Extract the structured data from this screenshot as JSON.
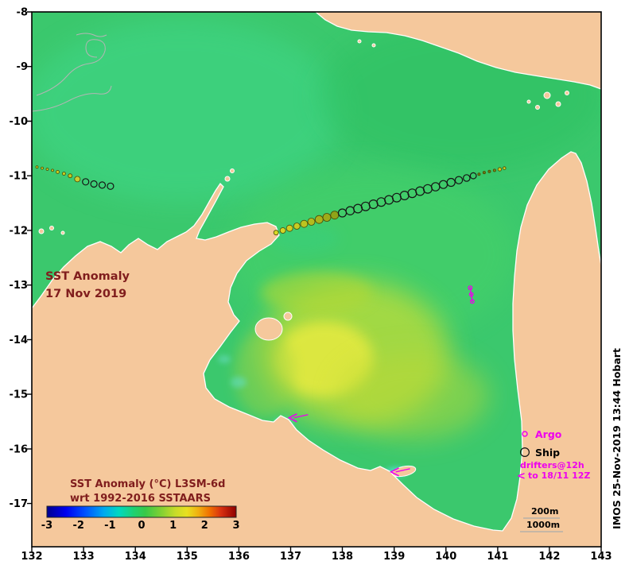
{
  "page": {
    "bg": "#ffffff"
  },
  "annotation": {
    "line1": "SST Anomaly",
    "line2": "17 Nov 2019"
  },
  "colorbar": {
    "label_line1": "SST Anomaly (°C) L3SM-6d",
    "label_line2": "wrt 1992-2016 SSTAARS",
    "tick_labels": [
      "-3",
      "-2",
      "-1",
      "0",
      "1",
      "2",
      "3"
    ],
    "gradient_colors": [
      "#00008f",
      "#0000f0",
      "#0050ff",
      "#00a8f0",
      "#00d8c0",
      "#20d070",
      "#38c848",
      "#7ed034",
      "#c8dc28",
      "#e8e020",
      "#f0b010",
      "#f07000",
      "#d83010",
      "#8f0000"
    ]
  },
  "legend": {
    "argo_label": "Argo",
    "ship_label": "Ship",
    "drifters_line1": "drifters@12h",
    "drifters_line2": "to 18/11 12Z",
    "arrow_glyph": "<"
  },
  "depth_legend": {
    "label_200": "200m",
    "label_1000": "1000m"
  },
  "credit": "IMOS 25-Nov-2019 13:44 Hobart",
  "axes": {
    "x_tick_labels": [
      "132",
      "133",
      "134",
      "135",
      "136",
      "137",
      "138",
      "139",
      "140",
      "141",
      "142",
      "143"
    ],
    "y_tick_labels": [
      "-8",
      "-9",
      "-10",
      "-11",
      "-12",
      "-13",
      "-14",
      "-15",
      "-16",
      "-17"
    ],
    "lon_range": [
      132,
      143
    ],
    "lat_range": [
      -17.79,
      -8
    ]
  },
  "colors": {
    "land": "#f5c89c",
    "ocean": "#3bc86d",
    "annotation_text": "#801d1d",
    "magenta": "#ee00ee"
  },
  "markers": {
    "argo_color": "#ee00ee",
    "ship_track": [
      [
        132.1,
        -10.84,
        1.5,
        "#d6d61e"
      ],
      [
        132.2,
        -10.86,
        1.5,
        "#d6d61e"
      ],
      [
        132.3,
        -10.88,
        1.5,
        "#cfd41e"
      ],
      [
        132.4,
        -10.9,
        1.5,
        "#cfd41e"
      ],
      [
        132.5,
        -10.93,
        2,
        "#c9d01e"
      ],
      [
        132.62,
        -10.96,
        2,
        "#c9d01e"
      ],
      [
        132.74,
        -11.0,
        2.5,
        "#c2cc1e"
      ],
      [
        132.88,
        -11.06,
        3.5,
        "#c9cf30"
      ],
      [
        133.04,
        -11.11,
        4,
        "open"
      ],
      [
        133.2,
        -11.15,
        4,
        "open"
      ],
      [
        133.36,
        -11.17,
        4,
        "open"
      ],
      [
        133.52,
        -11.19,
        4,
        "open"
      ],
      [
        136.72,
        -12.04,
        3,
        "#d8da26"
      ],
      [
        136.85,
        -12.0,
        3.5,
        "#d4d626"
      ],
      [
        136.98,
        -11.96,
        4,
        "#cdd024"
      ],
      [
        137.12,
        -11.92,
        4,
        "#c6cc22"
      ],
      [
        137.26,
        -11.88,
        4.5,
        "#bcc420"
      ],
      [
        137.4,
        -11.84,
        4.5,
        "#b2bc1e"
      ],
      [
        137.55,
        -11.8,
        5,
        "#a8b41c"
      ],
      [
        137.7,
        -11.76,
        5,
        "#9cac1a"
      ],
      [
        137.85,
        -11.72,
        5,
        "#90a418"
      ],
      [
        138.0,
        -11.68,
        5,
        "open"
      ],
      [
        138.15,
        -11.64,
        5.2,
        "open"
      ],
      [
        138.3,
        -11.6,
        5.4,
        "open"
      ],
      [
        138.45,
        -11.56,
        5.4,
        "open"
      ],
      [
        138.6,
        -11.52,
        5.4,
        "open"
      ],
      [
        138.75,
        -11.48,
        5.4,
        "open"
      ],
      [
        138.9,
        -11.44,
        5.4,
        "open"
      ],
      [
        139.05,
        -11.4,
        5.4,
        "open"
      ],
      [
        139.2,
        -11.36,
        5.4,
        "open"
      ],
      [
        139.35,
        -11.32,
        5.4,
        "open"
      ],
      [
        139.5,
        -11.28,
        5.4,
        "open"
      ],
      [
        139.65,
        -11.24,
        5.4,
        "open"
      ],
      [
        139.8,
        -11.2,
        5.2,
        "open"
      ],
      [
        139.95,
        -11.16,
        5,
        "open"
      ],
      [
        140.1,
        -11.12,
        5,
        "open"
      ],
      [
        140.25,
        -11.08,
        4.6,
        "open"
      ],
      [
        140.4,
        -11.04,
        4.2,
        "open"
      ],
      [
        140.53,
        -11.0,
        3.8,
        "open"
      ],
      [
        140.64,
        -10.97,
        1.6,
        "#6a7a10"
      ],
      [
        140.74,
        -10.94,
        1.6,
        "#6a7a10"
      ],
      [
        140.84,
        -10.92,
        1.6,
        "#6a7a10"
      ],
      [
        140.94,
        -10.9,
        1.6,
        "#7a8a10"
      ],
      [
        141.04,
        -10.88,
        2.2,
        "#d2d21e"
      ],
      [
        141.13,
        -10.86,
        1.8,
        "#d2d21e"
      ]
    ],
    "argo": [
      [
        140.47,
        -13.05
      ],
      [
        140.49,
        -13.17
      ],
      [
        140.51,
        -13.3
      ]
    ],
    "drifters": [
      [
        137.03,
        -15.43
      ],
      [
        139.0,
        -16.42
      ]
    ]
  }
}
